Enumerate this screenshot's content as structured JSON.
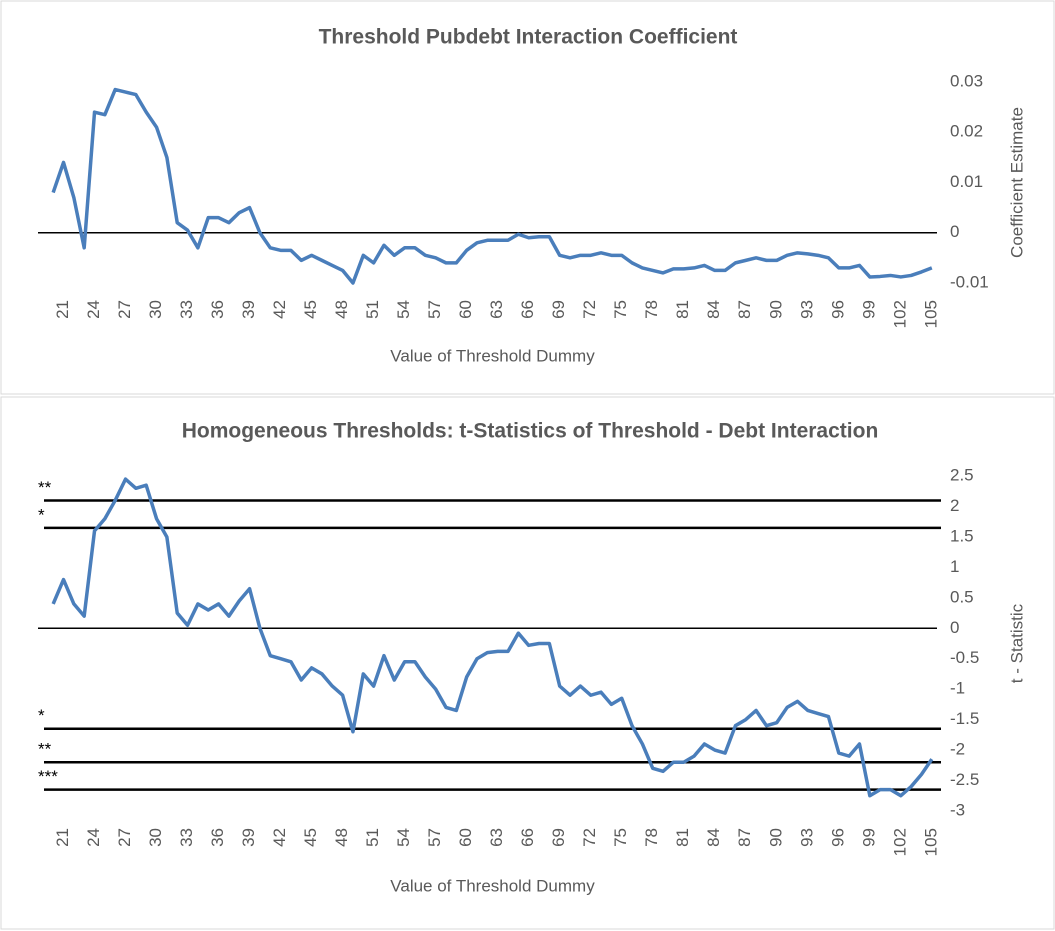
{
  "chart_data": [
    {
      "type": "line",
      "title": "Threshold Pubdebt Interaction Coefficient",
      "x_label": "Value of Threshold Dummy",
      "y_label": "Coefficient Estimate",
      "x": [
        20,
        21,
        22,
        23,
        24,
        25,
        26,
        27,
        28,
        29,
        30,
        31,
        32,
        33,
        34,
        35,
        36,
        37,
        38,
        39,
        40,
        41,
        42,
        43,
        44,
        45,
        46,
        47,
        48,
        49,
        50,
        51,
        52,
        53,
        54,
        55,
        56,
        57,
        58,
        59,
        60,
        61,
        62,
        63,
        64,
        65,
        66,
        67,
        68,
        69,
        70,
        71,
        72,
        73,
        74,
        75,
        76,
        77,
        78,
        79,
        80,
        81,
        82,
        83,
        84,
        85,
        86,
        87,
        88,
        89,
        90,
        91,
        92,
        93,
        94,
        95,
        96,
        97,
        98,
        99,
        100,
        101,
        102,
        103,
        104,
        105
      ],
      "series": [
        {
          "name": "Coefficient",
          "color": "#4a7ebb",
          "values": [
            0.008,
            0.014,
            0.007,
            -0.003,
            0.024,
            0.0235,
            0.0285,
            0.028,
            0.0275,
            0.024,
            0.021,
            0.015,
            0.002,
            0.0005,
            -0.003,
            0.003,
            0.003,
            0.002,
            0.004,
            0.005,
            0.0,
            -0.003,
            -0.0035,
            -0.0035,
            -0.0055,
            -0.0045,
            -0.0055,
            -0.0065,
            -0.0075,
            -0.01,
            -0.0045,
            -0.006,
            -0.0025,
            -0.0045,
            -0.003,
            -0.003,
            -0.0045,
            -0.005,
            -0.006,
            -0.006,
            -0.0035,
            -0.002,
            -0.0015,
            -0.0015,
            -0.0015,
            -0.0003,
            -0.001,
            -0.0008,
            -0.0008,
            -0.0045,
            -0.005,
            -0.0045,
            -0.0045,
            -0.004,
            -0.0045,
            -0.0045,
            -0.006,
            -0.007,
            -0.0075,
            -0.008,
            -0.0072,
            -0.0072,
            -0.007,
            -0.0065,
            -0.0075,
            -0.0075,
            -0.006,
            -0.0055,
            -0.005,
            -0.0055,
            -0.0055,
            -0.0045,
            -0.004,
            -0.0042,
            -0.0045,
            -0.005,
            -0.007,
            -0.007,
            -0.0065,
            -0.0088,
            -0.0087,
            -0.0085,
            -0.0088,
            -0.0085,
            -0.0078,
            -0.007
          ]
        }
      ],
      "xlim": [
        19.5,
        105.5
      ],
      "xticks": [
        21,
        24,
        27,
        30,
        33,
        36,
        39,
        42,
        45,
        48,
        51,
        54,
        57,
        60,
        63,
        66,
        69,
        72,
        75,
        78,
        81,
        84,
        87,
        90,
        93,
        96,
        99,
        102,
        105
      ],
      "ylim": [
        -0.011,
        0.031
      ],
      "yticks": [
        -0.01,
        0,
        0.01,
        0.02,
        0.03
      ],
      "grid": false
    },
    {
      "type": "line",
      "title": "Homogeneous Thresholds: t-Statistics of Threshold - Debt Interaction",
      "x_label": "Value of Threshold Dummy",
      "y_label": "t - Statistic",
      "x": [
        20,
        21,
        22,
        23,
        24,
        25,
        26,
        27,
        28,
        29,
        30,
        31,
        32,
        33,
        34,
        35,
        36,
        37,
        38,
        39,
        40,
        41,
        42,
        43,
        44,
        45,
        46,
        47,
        48,
        49,
        50,
        51,
        52,
        53,
        54,
        55,
        56,
        57,
        58,
        59,
        60,
        61,
        62,
        63,
        64,
        65,
        66,
        67,
        68,
        69,
        70,
        71,
        72,
        73,
        74,
        75,
        76,
        77,
        78,
        79,
        80,
        81,
        82,
        83,
        84,
        85,
        86,
        87,
        88,
        89,
        90,
        91,
        92,
        93,
        94,
        95,
        96,
        97,
        98,
        99,
        100,
        101,
        102,
        103,
        104,
        105
      ],
      "series": [
        {
          "name": "t-Statistic",
          "color": "#4a7ebb",
          "values": [
            0.4,
            0.8,
            0.4,
            0.2,
            1.6,
            1.8,
            2.1,
            2.45,
            2.3,
            2.35,
            1.8,
            1.5,
            0.25,
            0.05,
            0.4,
            0.3,
            0.4,
            0.2,
            0.45,
            0.65,
            0.0,
            -0.45,
            -0.5,
            -0.55,
            -0.85,
            -0.65,
            -0.75,
            -0.95,
            -1.1,
            -1.7,
            -0.75,
            -0.95,
            -0.45,
            -0.85,
            -0.55,
            -0.55,
            -0.8,
            -1.0,
            -1.3,
            -1.35,
            -0.8,
            -0.5,
            -0.4,
            -0.38,
            -0.38,
            -0.08,
            -0.28,
            -0.25,
            -0.25,
            -0.95,
            -1.1,
            -0.95,
            -1.1,
            -1.05,
            -1.25,
            -1.15,
            -1.6,
            -1.9,
            -2.3,
            -2.35,
            -2.2,
            -2.2,
            -2.1,
            -1.9,
            -2.0,
            -2.05,
            -1.6,
            -1.5,
            -1.35,
            -1.6,
            -1.55,
            -1.3,
            -1.2,
            -1.35,
            -1.4,
            -1.45,
            -2.05,
            -2.1,
            -1.9,
            -2.75,
            -2.65,
            -2.65,
            -2.75,
            -2.6,
            -2.4,
            -2.15
          ]
        }
      ],
      "reference_lines": [
        {
          "value": 2.1,
          "label": "**"
        },
        {
          "value": 1.65,
          "label": "*"
        },
        {
          "value": -1.65,
          "label": "*"
        },
        {
          "value": -2.2,
          "label": "**"
        },
        {
          "value": -2.65,
          "label": "***"
        }
      ],
      "xlim": [
        19.5,
        105.5
      ],
      "xticks": [
        21,
        24,
        27,
        30,
        33,
        36,
        39,
        42,
        45,
        48,
        51,
        54,
        57,
        60,
        63,
        66,
        69,
        72,
        75,
        78,
        81,
        84,
        87,
        90,
        93,
        96,
        99,
        102,
        105
      ],
      "ylim": [
        -3.1,
        2.6
      ],
      "yticks": [
        -3,
        -2.5,
        -2,
        -1.5,
        -1,
        -0.5,
        0,
        0.5,
        1,
        1.5,
        2,
        2.5
      ],
      "grid": false
    }
  ]
}
